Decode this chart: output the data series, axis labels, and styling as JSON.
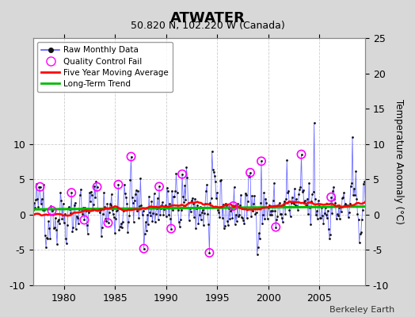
{
  "title": "ATWATER",
  "subtitle": "50.820 N, 102.220 W (Canada)",
  "ylabel": "Temperature Anomaly (°C)",
  "credit": "Berkeley Earth",
  "xlim": [
    1977.0,
    2009.5
  ],
  "ylim": [
    -10,
    25
  ],
  "yticks_left": [
    -10,
    -5,
    0,
    5,
    10
  ],
  "yticks_right": [
    25,
    20,
    15,
    10,
    5,
    0,
    -5,
    -10
  ],
  "bg_color": "#d8d8d8",
  "plot_bg": "#ffffff",
  "grid_color": "#cccccc",
  "raw_line_color": "#5555ff",
  "raw_dot_color": "#111111",
  "ma_color": "#ff0000",
  "trend_color": "#00bb00",
  "qc_color": "#ff00ff",
  "start_year": 1977,
  "end_year": 2009,
  "seed": 42
}
